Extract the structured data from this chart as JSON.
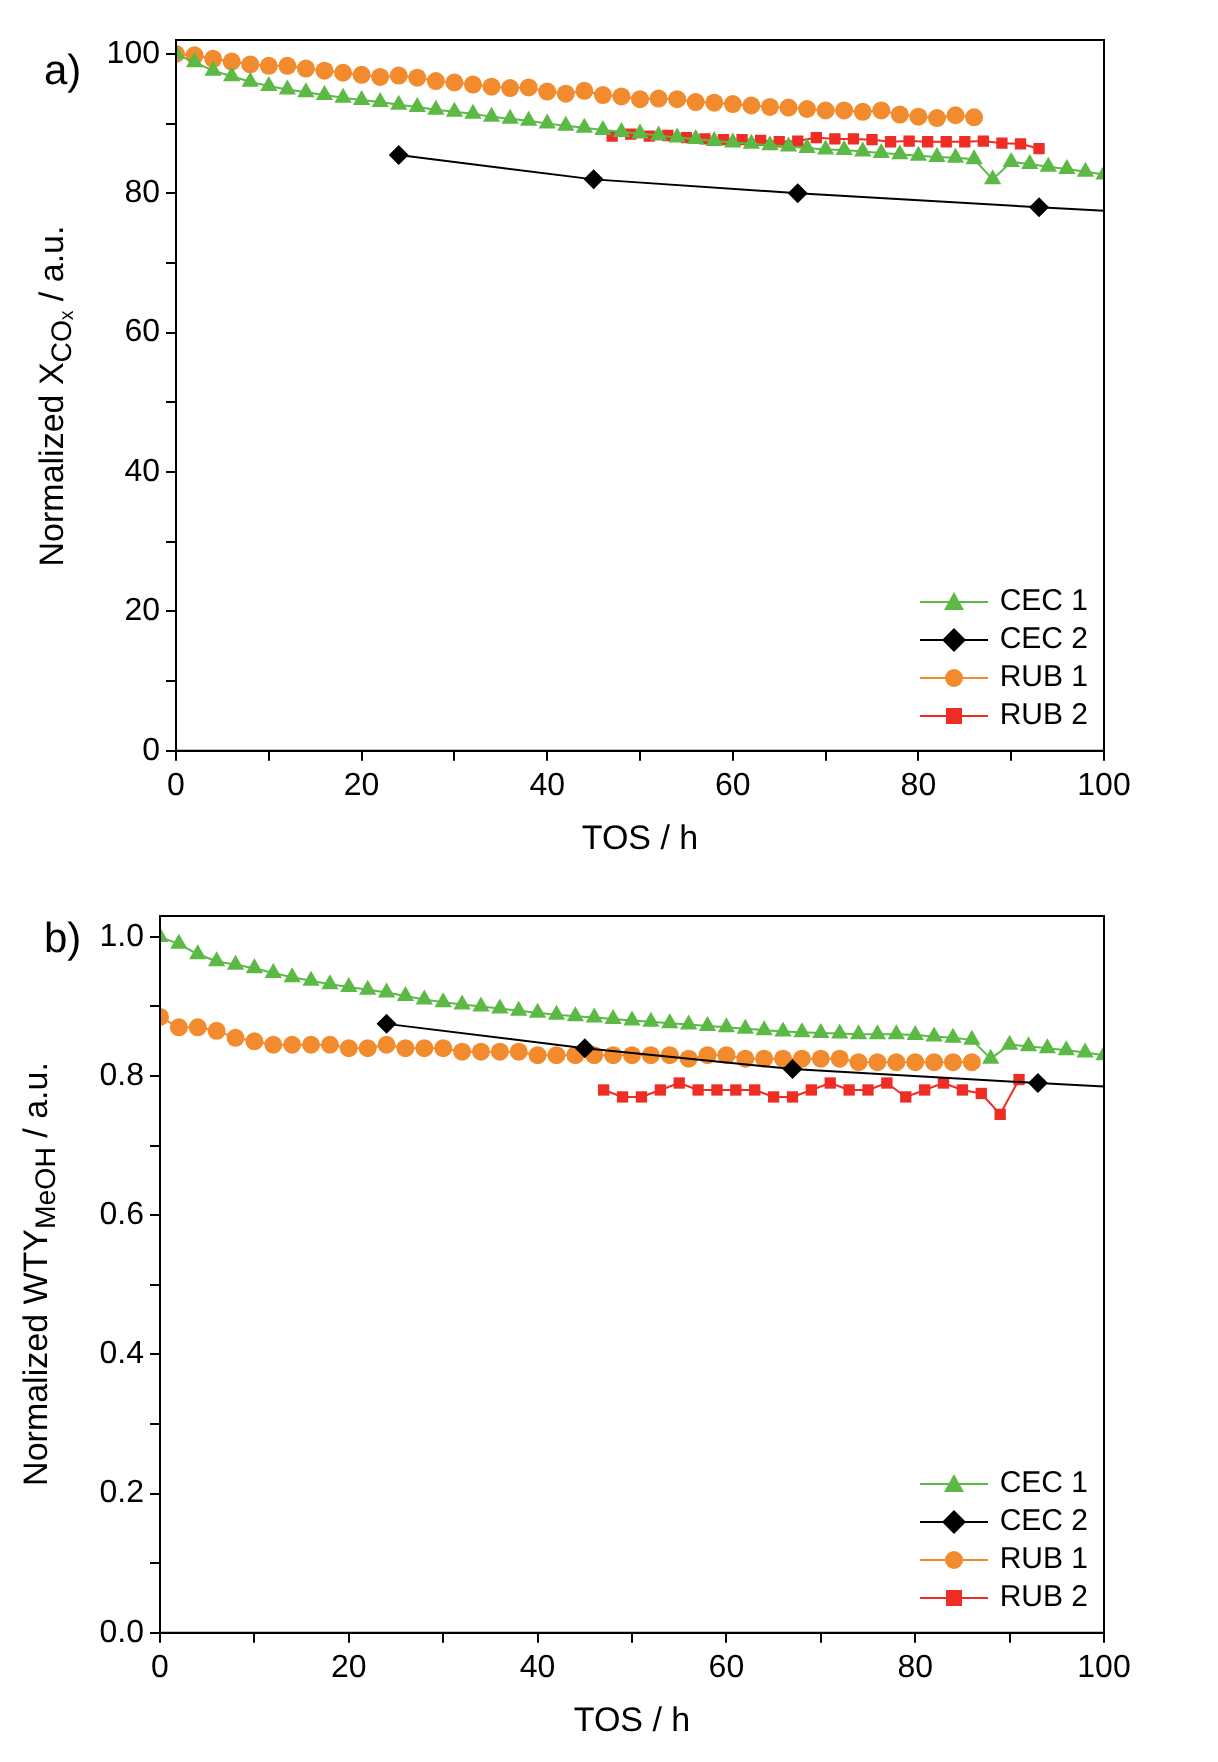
{
  "chart_data": [
    {
      "type": "line",
      "xlabel": "TOS / h",
      "ylabel": "Normalized X$_{COₓ}$ / a.u.",
      "annotations": [
        "a)"
      ],
      "xlim": [
        0,
        100
      ],
      "xticks": [
        0,
        {
          "value": 10,
          "label": null
        },
        20,
        {
          "value": 30,
          "label": null
        },
        40,
        {
          "value": 50,
          "label": null
        },
        60,
        {
          "value": 70,
          "label": null
        },
        80,
        {
          "value": 90,
          "label": null
        },
        100
      ],
      "ylim": [
        0,
        102
      ],
      "yticks": [
        0,
        {
          "value": 10,
          "label": null
        },
        20,
        {
          "value": 30,
          "label": null
        },
        40,
        {
          "value": 50,
          "label": null
        },
        60,
        {
          "value": 70,
          "label": null
        },
        80,
        {
          "value": 90,
          "label": null
        },
        100
      ],
      "grid": false,
      "legend": "bottom right",
      "series": [
        {
          "name": "CEC 1",
          "color": "#5cb946",
          "marker": "triangle",
          "x": [
            0,
            2,
            4,
            6,
            8,
            10,
            12,
            14,
            16,
            18,
            20,
            22,
            24,
            26,
            28,
            30,
            32,
            34,
            36,
            38,
            40,
            42,
            44,
            46,
            48,
            50,
            52,
            54,
            56,
            58,
            60,
            62,
            64,
            66,
            68,
            70,
            72,
            74,
            76,
            78,
            80,
            82,
            84,
            86,
            88,
            90,
            92,
            94,
            96,
            98,
            100
          ],
          "values": [
            100,
            98.8,
            97.6,
            96.8,
            96,
            95.4,
            94.9,
            94.5,
            94.1,
            93.7,
            93.4,
            93.1,
            92.7,
            92.4,
            92,
            91.7,
            91.4,
            91,
            90.7,
            90.4,
            90,
            89.7,
            89.4,
            89.1,
            88.8,
            88.6,
            88.3,
            88,
            87.8,
            87.5,
            87.3,
            87.1,
            86.9,
            86.7,
            86.5,
            86.3,
            86.2,
            86,
            85.8,
            85.6,
            85.4,
            85.2,
            85.1,
            84.9,
            82,
            84.5,
            84.2,
            83.8,
            83.5,
            83.1,
            82.7
          ]
        },
        {
          "name": "CEC 2",
          "color": "#000000",
          "marker": "diamond",
          "x": [
            24,
            45,
            67,
            93
          ],
          "values": [
            85.5,
            82,
            80,
            78
          ]
        },
        {
          "color": "#000000",
          "marker": "none",
          "x": [
            93,
            100
          ],
          "values": [
            78,
            77.5
          ]
        },
        {
          "name": "RUB 1",
          "color": "#f28a2e",
          "marker": "circle",
          "x": [
            0,
            2,
            4,
            6,
            8,
            10,
            12,
            14,
            16,
            18,
            20,
            22,
            24,
            26,
            28,
            30,
            32,
            34,
            36,
            38,
            40,
            42,
            44,
            46,
            48,
            50,
            52,
            54,
            56,
            58,
            60,
            62,
            64,
            66,
            68,
            70,
            72,
            74,
            76,
            78,
            80,
            82,
            84,
            86
          ],
          "values": [
            100,
            99.8,
            99.3,
            98.9,
            98.5,
            98.3,
            98.3,
            97.9,
            97.6,
            97.3,
            97,
            96.7,
            96.9,
            96.6,
            96.1,
            95.9,
            95.6,
            95.3,
            95.1,
            95.2,
            94.6,
            94.3,
            94.7,
            94.1,
            93.9,
            93.5,
            93.6,
            93.5,
            93.1,
            93,
            92.8,
            92.6,
            92.4,
            92.3,
            92.1,
            91.9,
            91.9,
            91.7,
            91.9,
            91.3,
            91,
            90.8,
            91.2,
            90.9
          ]
        },
        {
          "name": "RUB 2",
          "color": "#ee2d24",
          "marker": "square",
          "x": [
            47,
            49,
            51,
            53,
            55,
            57,
            59,
            61,
            63,
            65,
            67,
            69,
            71,
            73,
            75,
            77,
            79,
            81,
            83,
            85,
            87,
            89,
            91,
            93
          ],
          "values": [
            88.2,
            88.5,
            88.2,
            88.3,
            88,
            87.8,
            87.7,
            87.7,
            87.6,
            87.4,
            87.5,
            88,
            87.8,
            87.8,
            87.7,
            87.4,
            87.5,
            87.4,
            87.4,
            87.4,
            87.5,
            87.2,
            87.1,
            86.4
          ]
        }
      ]
    },
    {
      "type": "line",
      "xlabel": "TOS / h",
      "ylabel": "Normalized WTY$_{MeOH}$ / a.u.",
      "annotations": [
        "b)"
      ],
      "xlim": [
        0,
        100
      ],
      "xticks": [
        0,
        {
          "value": 10,
          "label": null
        },
        20,
        {
          "value": 30,
          "label": null
        },
        40,
        {
          "value": 50,
          "label": null
        },
        60,
        {
          "value": 70,
          "label": null
        },
        80,
        {
          "value": 90,
          "label": null
        },
        100
      ],
      "ylim": [
        0,
        1.03
      ],
      "yticks": [
        {
          "value": 0,
          "label": "0.0"
        },
        {
          "value": 0.1,
          "label": null
        },
        0.2,
        {
          "value": 0.3,
          "label": null
        },
        0.4,
        {
          "value": 0.5,
          "label": null
        },
        0.6,
        {
          "value": 0.7,
          "label": null
        },
        0.8,
        {
          "value": 0.9,
          "label": null
        },
        {
          "value": 1,
          "label": "1.0"
        }
      ],
      "grid": false,
      "legend": "bottom right",
      "series": [
        {
          "name": "CEC 1",
          "color": "#5cb946",
          "marker": "triangle",
          "x": [
            0,
            2,
            4,
            6,
            8,
            10,
            12,
            14,
            16,
            18,
            20,
            22,
            24,
            26,
            28,
            30,
            32,
            34,
            36,
            38,
            40,
            42,
            44,
            46,
            48,
            50,
            52,
            54,
            56,
            58,
            60,
            62,
            64,
            66,
            68,
            70,
            72,
            74,
            76,
            78,
            80,
            82,
            84,
            86,
            88,
            90,
            92,
            94,
            96,
            98,
            100
          ],
          "values": [
            1,
            0.99,
            0.975,
            0.965,
            0.96,
            0.955,
            0.948,
            0.942,
            0.937,
            0.932,
            0.928,
            0.924,
            0.92,
            0.915,
            0.91,
            0.906,
            0.903,
            0.9,
            0.897,
            0.894,
            0.891,
            0.888,
            0.886,
            0.884,
            0.882,
            0.88,
            0.878,
            0.876,
            0.874,
            0.872,
            0.87,
            0.868,
            0.866,
            0.864,
            0.863,
            0.862,
            0.861,
            0.86,
            0.86,
            0.86,
            0.859,
            0.857,
            0.855,
            0.852,
            0.825,
            0.845,
            0.843,
            0.84,
            0.837,
            0.834,
            0.83
          ]
        },
        {
          "name": "CEC 2",
          "color": "#000000",
          "marker": "diamond",
          "x": [
            24,
            45,
            67,
            93
          ],
          "values": [
            0.875,
            0.84,
            0.81,
            0.79
          ]
        },
        {
          "color": "#000000",
          "marker": "none",
          "x": [
            93,
            100
          ],
          "values": [
            0.79,
            0.785
          ]
        },
        {
          "name": "RUB 1",
          "color": "#f28a2e",
          "marker": "circle",
          "x": [
            0,
            2,
            4,
            6,
            8,
            10,
            12,
            14,
            16,
            18,
            20,
            22,
            24,
            26,
            28,
            30,
            32,
            34,
            36,
            38,
            40,
            42,
            44,
            46,
            48,
            50,
            52,
            54,
            56,
            58,
            60,
            62,
            64,
            66,
            68,
            70,
            72,
            74,
            76,
            78,
            80,
            82,
            84,
            86
          ],
          "values": [
            0.885,
            0.87,
            0.87,
            0.865,
            0.855,
            0.85,
            0.845,
            0.845,
            0.845,
            0.845,
            0.84,
            0.84,
            0.845,
            0.84,
            0.84,
            0.84,
            0.835,
            0.835,
            0.835,
            0.835,
            0.83,
            0.83,
            0.83,
            0.83,
            0.83,
            0.83,
            0.83,
            0.83,
            0.825,
            0.83,
            0.83,
            0.825,
            0.825,
            0.825,
            0.825,
            0.825,
            0.825,
            0.82,
            0.82,
            0.82,
            0.82,
            0.82,
            0.82,
            0.82
          ]
        },
        {
          "name": "RUB 2",
          "color": "#ee2d24",
          "marker": "square",
          "x": [
            47,
            49,
            51,
            53,
            55,
            57,
            59,
            61,
            63,
            65,
            67,
            69,
            71,
            73,
            75,
            77,
            79,
            81,
            83,
            85,
            87,
            89,
            91
          ],
          "values": [
            0.78,
            0.77,
            0.77,
            0.78,
            0.79,
            0.78,
            0.78,
            0.78,
            0.78,
            0.77,
            0.77,
            0.78,
            0.79,
            0.78,
            0.78,
            0.79,
            0.77,
            0.78,
            0.79,
            0.78,
            0.775,
            0.745,
            0.795
          ]
        }
      ]
    }
  ]
}
